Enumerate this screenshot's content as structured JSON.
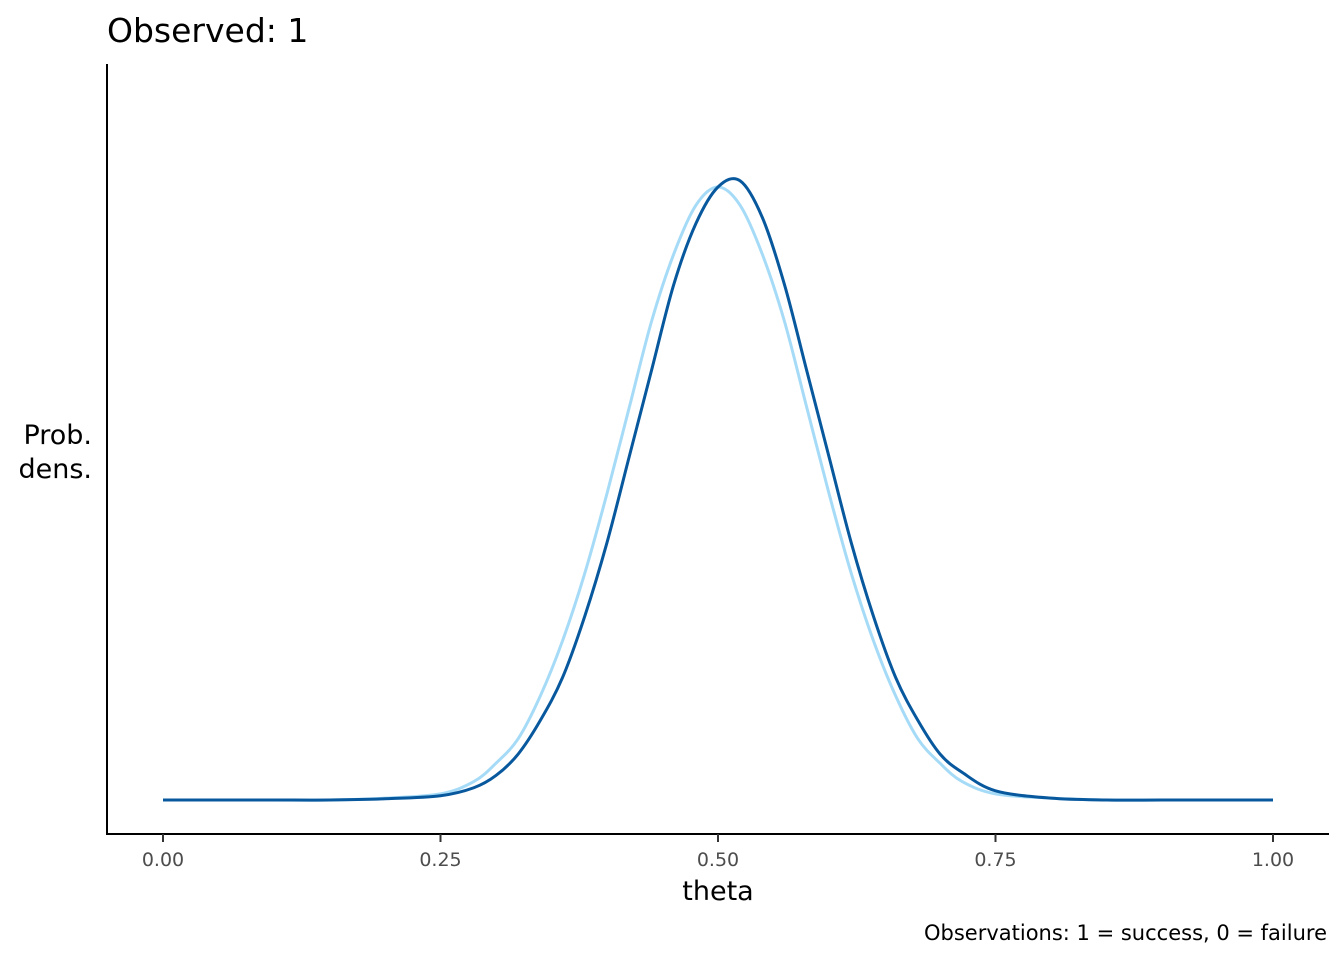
{
  "chart_data": {
    "type": "line",
    "title": "Observed:  1",
    "xlabel": "theta",
    "ylabel_lines": [
      "Prob.",
      "dens."
    ],
    "caption": "Observations: 1 = success, 0 = failure",
    "xlim": [
      0,
      1
    ],
    "x_ticks": [
      0,
      0.25,
      0.5,
      0.75,
      1
    ],
    "x_tick_labels": [
      "0.00",
      "0.25",
      "0.50",
      "0.75",
      "1.00"
    ],
    "y_ticks_shown": false,
    "grid": false,
    "legend": "none",
    "series": [
      {
        "role": "prior",
        "color": "#a6dbf7",
        "x": [
          0.0,
          0.05,
          0.1,
          0.15,
          0.2,
          0.25,
          0.28,
          0.3,
          0.32,
          0.34,
          0.36,
          0.38,
          0.4,
          0.42,
          0.44,
          0.46,
          0.48,
          0.5,
          0.52,
          0.54,
          0.56,
          0.58,
          0.6,
          0.62,
          0.64,
          0.66,
          0.68,
          0.7,
          0.72,
          0.75,
          0.8,
          0.85,
          0.9,
          0.95,
          1.0
        ],
        "values": [
          0.0,
          0.0,
          0.0,
          0.0,
          0.003,
          0.01,
          0.03,
          0.06,
          0.1,
          0.17,
          0.26,
          0.37,
          0.5,
          0.64,
          0.78,
          0.89,
          0.97,
          1.0,
          0.97,
          0.89,
          0.78,
          0.64,
          0.5,
          0.37,
          0.26,
          0.17,
          0.1,
          0.06,
          0.03,
          0.01,
          0.003,
          0.0,
          0.0,
          0.0,
          0.0
        ]
      },
      {
        "role": "posterior",
        "color": "#08589e",
        "x": [
          0.0,
          0.05,
          0.1,
          0.15,
          0.2,
          0.25,
          0.28,
          0.3,
          0.32,
          0.34,
          0.36,
          0.38,
          0.4,
          0.42,
          0.44,
          0.46,
          0.48,
          0.5,
          0.52,
          0.54,
          0.56,
          0.58,
          0.6,
          0.62,
          0.64,
          0.66,
          0.68,
          0.7,
          0.72,
          0.75,
          0.8,
          0.85,
          0.9,
          0.95,
          1.0
        ],
        "values": [
          0.0,
          0.0,
          0.0,
          0.0,
          0.002,
          0.007,
          0.02,
          0.04,
          0.075,
          0.13,
          0.2,
          0.3,
          0.42,
          0.56,
          0.7,
          0.84,
          0.94,
          1.0,
          1.01,
          0.95,
          0.84,
          0.7,
          0.56,
          0.42,
          0.3,
          0.2,
          0.13,
          0.075,
          0.045,
          0.015,
          0.003,
          0.0,
          0.0,
          0.0,
          0.0
        ]
      }
    ]
  }
}
